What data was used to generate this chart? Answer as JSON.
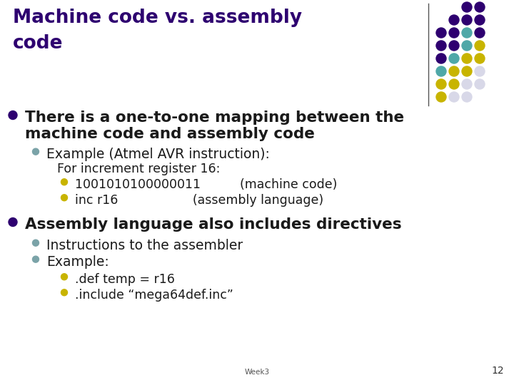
{
  "title_line1": "Machine code vs. assembly",
  "title_line2": "code",
  "title_color": "#2e0070",
  "bg_color": "#FFFFFF",
  "slide_number": "12",
  "week_label": "Week3",
  "content": [
    {
      "level": 1,
      "bullet_color": "#2e0070",
      "text": "There is a one-to-one mapping between the",
      "bold": true,
      "fontsize": 15.5
    },
    {
      "level": 1,
      "bullet_color": null,
      "text": "machine code and assembly code",
      "bold": true,
      "fontsize": 15.5
    },
    {
      "level": 2,
      "bullet_color": "#7ba3a8",
      "text": "Example (Atmel AVR instruction):",
      "bold": false,
      "fontsize": 13.5
    },
    {
      "level": 3,
      "bullet_color": null,
      "text": "For increment register 16:",
      "bold": false,
      "fontsize": 12.5
    },
    {
      "level": 4,
      "bullet_color": "#c8b400",
      "text": "1001010100000011          (machine code)",
      "bold": false,
      "fontsize": 12.5
    },
    {
      "level": 4,
      "bullet_color": "#c8b400",
      "text": "inc r16                   (assembly language)",
      "bold": false,
      "fontsize": 12.5
    },
    {
      "level": 1,
      "bullet_color": "#2e0070",
      "text": "Assembly language also includes directives",
      "bold": true,
      "fontsize": 15.5
    },
    {
      "level": 2,
      "bullet_color": "#7ba3a8",
      "text": "Instructions to the assembler",
      "bold": false,
      "fontsize": 13.5
    },
    {
      "level": 2,
      "bullet_color": "#7ba3a8",
      "text": "Example:",
      "bold": false,
      "fontsize": 13.5
    },
    {
      "level": 4,
      "bullet_color": "#c8b400",
      "text": ".def temp = r16",
      "bold": false,
      "fontsize": 12.5
    },
    {
      "level": 4,
      "bullet_color": "#c8b400",
      "text": ".include “mega64def.inc”",
      "bold": false,
      "fontsize": 12.5
    }
  ],
  "dot_grid": {
    "colors": [
      [
        "#FFFFFF",
        "#FFFFFF",
        "#2e0070",
        "#2e0070"
      ],
      [
        "#FFFFFF",
        "#2e0070",
        "#2e0070",
        "#2e0070"
      ],
      [
        "#2e0070",
        "#2e0070",
        "#4fa8a8",
        "#2e0070"
      ],
      [
        "#2e0070",
        "#2e0070",
        "#4fa8a8",
        "#c8b400"
      ],
      [
        "#2e0070",
        "#4fa8a8",
        "#c8b400",
        "#c8b400"
      ],
      [
        "#4fa8a8",
        "#c8b400",
        "#c8b400",
        "#d8d8e8"
      ],
      [
        "#c8b400",
        "#c8b400",
        "#d8d8e8",
        "#d8d8e8"
      ],
      [
        "#c8b400",
        "#d8d8e8",
        "#d8d8e8",
        "#FFFFFF"
      ]
    ]
  },
  "y_positions": [
    155,
    178,
    207,
    228,
    250,
    272,
    305,
    335,
    358,
    383,
    405
  ],
  "indent_map": {
    "1": 35,
    "2": 65,
    "3": 80,
    "4": 105
  },
  "bullet_x_map": {
    "1": 18,
    "2": 50,
    "4": 90
  },
  "bullet_r_map": {
    "1": 6,
    "2": 4.5,
    "4": 4.5
  }
}
